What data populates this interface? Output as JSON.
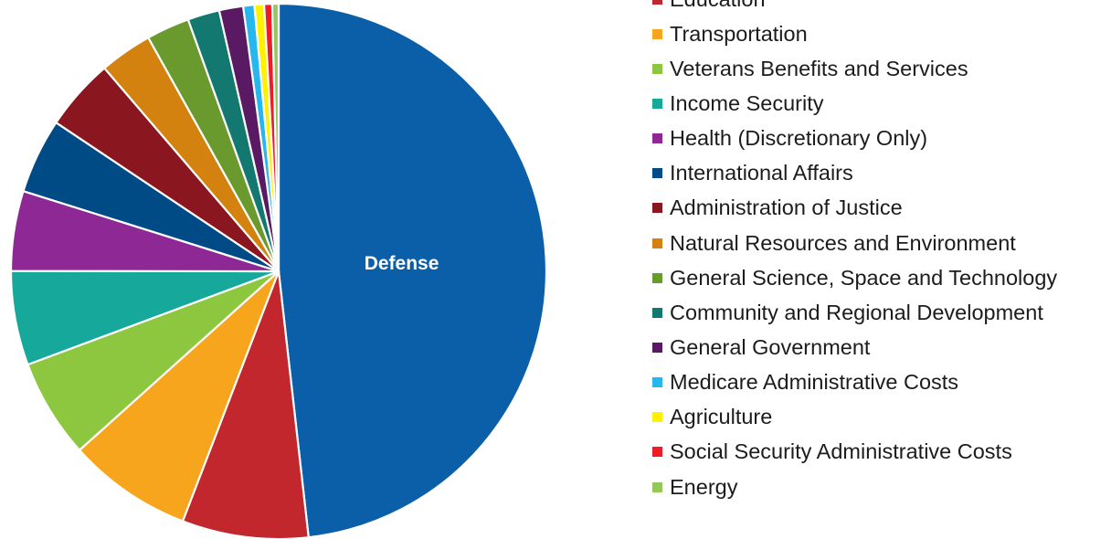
{
  "chart_data": {
    "type": "pie",
    "title": "",
    "start": "top, clockwise",
    "slice_labels_shown": [
      "Defense"
    ],
    "slices": [
      {
        "name": "Defense",
        "value": 50.0,
        "color": "#0a5fa8"
      },
      {
        "name": "Education",
        "value": 7.9,
        "color": "#c1272d"
      },
      {
        "name": "Transportation",
        "value": 7.8,
        "color": "#f7a51c"
      },
      {
        "name": "Veterans Benefits and Services",
        "value": 6.2,
        "color": "#8dc63f"
      },
      {
        "name": "Income Security",
        "value": 5.9,
        "color": "#16a99b"
      },
      {
        "name": "Health (Discretionary Only)",
        "value": 5.0,
        "color": "#8e2894"
      },
      {
        "name": "International Affairs",
        "value": 4.7,
        "color": "#004b85"
      },
      {
        "name": "Administration of Justice",
        "value": 4.5,
        "color": "#8a1620"
      },
      {
        "name": "Natural Resources and Environment",
        "value": 3.3,
        "color": "#d4820f"
      },
      {
        "name": "General Science, Space and Technology",
        "value": 2.7,
        "color": "#6a9a2e"
      },
      {
        "name": "Community and Regional Development",
        "value": 2.0,
        "color": "#137870"
      },
      {
        "name": "General Government",
        "value": 1.5,
        "color": "#5a1a63"
      },
      {
        "name": "Medicare Administrative Costs",
        "value": 0.7,
        "color": "#25b7ed"
      },
      {
        "name": "Agriculture",
        "value": 0.6,
        "color": "#fff100"
      },
      {
        "name": "Social Security Administrative Costs",
        "value": 0.5,
        "color": "#ee1c25"
      },
      {
        "name": "Energy",
        "value": 0.4,
        "color": "#93c95a"
      }
    ]
  }
}
